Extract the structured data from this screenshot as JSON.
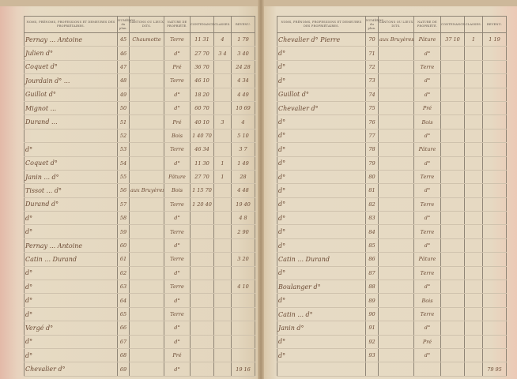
{
  "headers": {
    "names": "NOMS, PRÉNOMS, PROFESSIONS ET DEMEURES DES PROPRIÉTAIRES.",
    "numero": "NUMÉROS du plan.",
    "cantons": "CANTONS OU LIEUX DITS.",
    "nature": "NATURE DE PROPRIÉTÉ.",
    "contenance": "CONTENANCE.",
    "classes": "CLASSES.",
    "revenu": "REVENU."
  },
  "left_rows": [
    [
      "Pernay ... Antoine",
      "45",
      "Chaumotte",
      "Terre",
      "11 31",
      "4",
      "1 79"
    ],
    [
      "Julien d°",
      "46",
      "",
      "d°",
      "27 70",
      "3 4",
      "3 40"
    ],
    [
      "Coquet d°",
      "47",
      "",
      "Pré",
      "36 70",
      "",
      "24 28"
    ],
    [
      "Jourdain d° ...",
      "48",
      "",
      "Terre",
      "46 10",
      "",
      "4 34"
    ],
    [
      "Guillot d°",
      "49",
      "",
      "d°",
      "18 20",
      "",
      "4 49"
    ],
    [
      "Mignot ...",
      "50",
      "",
      "d°",
      "60 70",
      "",
      "10 69"
    ],
    [
      "Durand ...",
      "51",
      "",
      "Pré",
      "40 10",
      "3",
      "4"
    ],
    [
      "",
      "52",
      "",
      "Bois",
      "1 40 70",
      "",
      "5 10"
    ],
    [
      "d°",
      "53",
      "",
      "Terre",
      "46 34",
      "",
      "3 7"
    ],
    [
      "Coquet d°",
      "54",
      "",
      "d°",
      "11 30",
      "1",
      "1 49"
    ],
    [
      "Janin ... d°",
      "55",
      "",
      "Pâture",
      "27 70",
      "1",
      "28"
    ],
    [
      "Tissot ... d°",
      "56",
      "aux Bruyères",
      "Bois",
      "1 15 70",
      "",
      "4 48"
    ],
    [
      "Durand d°",
      "57",
      "",
      "Terre",
      "1 20 40",
      "",
      "19 40"
    ],
    [
      "d°",
      "58",
      "",
      "d°",
      "",
      "",
      "4 8"
    ],
    [
      "d°",
      "59",
      "",
      "Terre",
      "",
      "",
      "2 90"
    ],
    [
      "Pernay ... Antoine",
      "60",
      "",
      "d°",
      "",
      "",
      ""
    ],
    [
      "Catin ... Durand",
      "61",
      "",
      "Terre",
      "",
      "",
      "3 20"
    ],
    [
      "d°",
      "62",
      "",
      "d°",
      "",
      "",
      ""
    ],
    [
      "d°",
      "63",
      "",
      "Terre",
      "",
      "",
      "4 10"
    ],
    [
      "d°",
      "64",
      "",
      "d°",
      "",
      "",
      ""
    ],
    [
      "d°",
      "65",
      "",
      "Terre",
      "",
      "",
      ""
    ],
    [
      "Vergé d°",
      "66",
      "",
      "d°",
      "",
      "",
      ""
    ],
    [
      "d°",
      "67",
      "",
      "d°",
      "",
      "",
      ""
    ],
    [
      "d°",
      "68",
      "",
      "Pré",
      "",
      "",
      ""
    ],
    [
      "Chevalier d°",
      "69",
      "",
      "d°",
      "",
      "",
      "19 16"
    ]
  ],
  "right_rows": [
    [
      "Chevalier d° Pierre",
      "70",
      "aux Bruyères",
      "Pâture",
      "37 10",
      "1",
      "1 19"
    ],
    [
      "d°",
      "71",
      "",
      "d°",
      "",
      "",
      ""
    ],
    [
      "d°",
      "72",
      "",
      "Terre",
      "",
      "",
      ""
    ],
    [
      "d°",
      "73",
      "",
      "d°",
      "",
      "",
      ""
    ],
    [
      "Guillot d°",
      "74",
      "",
      "d°",
      "",
      "",
      ""
    ],
    [
      "Chevalier d°",
      "75",
      "",
      "Pré",
      "",
      "",
      ""
    ],
    [
      "d°",
      "76",
      "",
      "Bois",
      "",
      "",
      ""
    ],
    [
      "d°",
      "77",
      "",
      "d°",
      "",
      "",
      ""
    ],
    [
      "d°",
      "78",
      "",
      "Pâture",
      "",
      "",
      ""
    ],
    [
      "d°",
      "79",
      "",
      "d°",
      "",
      "",
      ""
    ],
    [
      "d°",
      "80",
      "",
      "Terre",
      "",
      "",
      ""
    ],
    [
      "d°",
      "81",
      "",
      "d°",
      "",
      "",
      ""
    ],
    [
      "d°",
      "82",
      "",
      "Terre",
      "",
      "",
      ""
    ],
    [
      "d°",
      "83",
      "",
      "d°",
      "",
      "",
      ""
    ],
    [
      "d°",
      "84",
      "",
      "Terre",
      "",
      "",
      ""
    ],
    [
      "d°",
      "85",
      "",
      "d°",
      "",
      "",
      ""
    ],
    [
      "Catin ... Durand",
      "86",
      "",
      "Pâture",
      "",
      "",
      ""
    ],
    [
      "d°",
      "87",
      "",
      "Terre",
      "",
      "",
      ""
    ],
    [
      "Boulanger d°",
      "88",
      "",
      "d°",
      "",
      "",
      ""
    ],
    [
      "d°",
      "89",
      "",
      "Bois",
      "",
      "",
      ""
    ],
    [
      "Catin ... d°",
      "90",
      "",
      "Terre",
      "",
      "",
      ""
    ],
    [
      "Janin d°",
      "91",
      "",
      "d°",
      "",
      "",
      ""
    ],
    [
      "d°",
      "92",
      "",
      "Pré",
      "",
      "",
      ""
    ],
    [
      "d°",
      "93",
      "",
      "d°",
      "",
      "",
      ""
    ],
    [
      "",
      "",
      "",
      "",
      "",
      "",
      "79 95"
    ]
  ]
}
